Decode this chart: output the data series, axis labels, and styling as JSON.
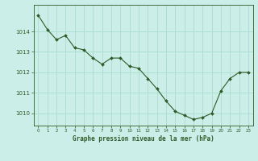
{
  "x": [
    0,
    1,
    2,
    3,
    4,
    5,
    6,
    7,
    8,
    9,
    10,
    11,
    12,
    13,
    14,
    15,
    16,
    17,
    18,
    19,
    20,
    21,
    22,
    23
  ],
  "y": [
    1014.8,
    1014.1,
    1013.6,
    1013.8,
    1013.2,
    1013.1,
    1012.7,
    1012.4,
    1012.7,
    1012.7,
    1012.3,
    1012.2,
    1011.7,
    1011.2,
    1010.6,
    1010.1,
    1009.9,
    1009.7,
    1009.8,
    1010.0,
    1011.1,
    1011.7,
    1012.0,
    1012.0
  ],
  "line_color": "#2d5a27",
  "marker_color": "#2d5a27",
  "bg_color": "#cceee8",
  "grid_color": "#aaddcc",
  "axis_color": "#2d5a27",
  "title": "Graphe pression niveau de la mer (hPa)",
  "xlabel_ticks": [
    "0",
    "1",
    "2",
    "3",
    "4",
    "5",
    "6",
    "7",
    "8",
    "9",
    "10",
    "11",
    "12",
    "13",
    "14",
    "15",
    "16",
    "17",
    "18",
    "19",
    "20",
    "21",
    "22",
    "23"
  ],
  "yticks": [
    1010,
    1011,
    1012,
    1013,
    1014
  ],
  "ylim": [
    1009.4,
    1015.3
  ],
  "xlim": [
    -0.5,
    23.5
  ]
}
